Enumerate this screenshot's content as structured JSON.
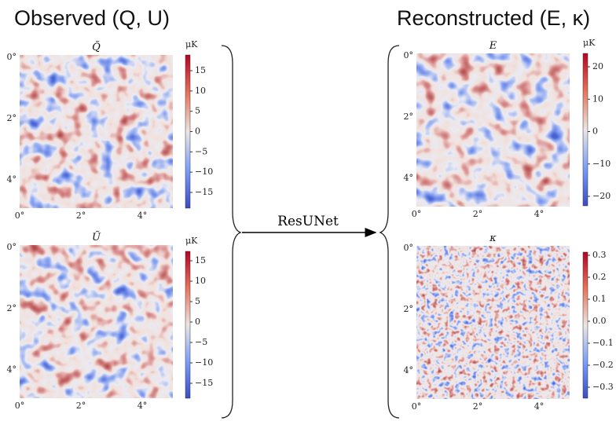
{
  "headings": {
    "observed": "Observed (Q, U)",
    "reconstructed": "Reconstructed (E, κ)"
  },
  "arrow_label": "ResUNet",
  "panels": [
    {
      "title": "Q̃",
      "unit": "μK",
      "axis_ticks": [
        "0°",
        "2°",
        "4°"
      ],
      "colorbar_ticks": [
        "15",
        "10",
        "5",
        "0",
        "−5",
        "−10",
        "−15"
      ]
    },
    {
      "title": "Ũ",
      "unit": "μK",
      "axis_ticks": [
        "0°",
        "2°",
        "4°"
      ],
      "colorbar_ticks": [
        "15",
        "10",
        "5",
        "0",
        "−5",
        "−10",
        "−15"
      ]
    },
    {
      "title": "E",
      "unit": "μK",
      "axis_ticks": [
        "0°",
        "2°",
        "4°"
      ],
      "colorbar_ticks": [
        "20",
        "10",
        "0",
        "−10",
        "−20"
      ]
    },
    {
      "title": "κ",
      "axis_ticks": [
        "0°",
        "2°",
        "4°"
      ],
      "colorbar_ticks": [
        "0.3",
        "0.2",
        "0.1",
        "0.0",
        "−0.1",
        "−0.2",
        "−0.3"
      ]
    }
  ]
}
